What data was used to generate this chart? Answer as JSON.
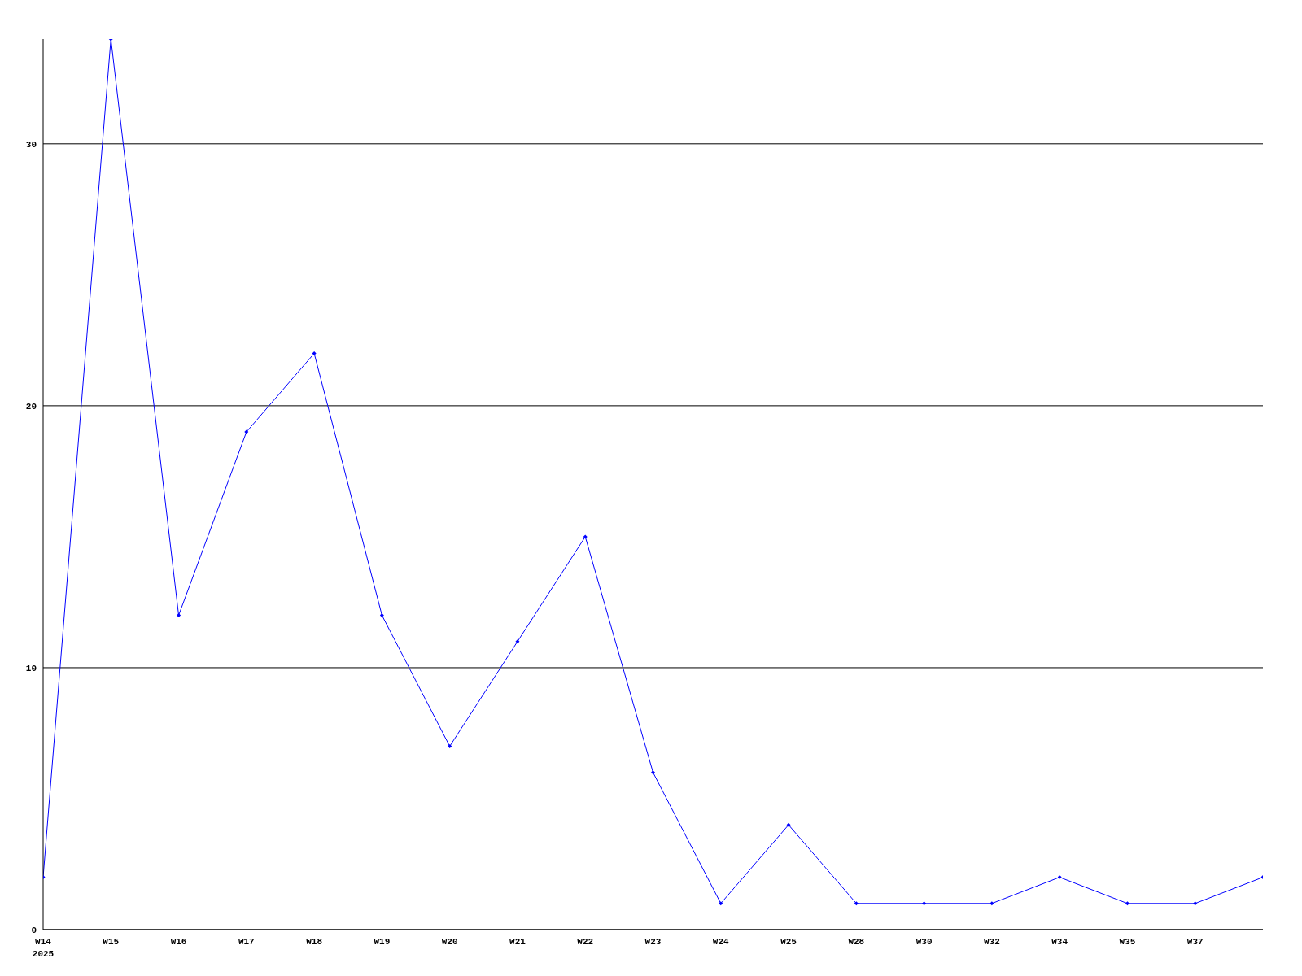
{
  "chart_data": {
    "type": "line",
    "categories": [
      "W14",
      "W15",
      "W16",
      "W17",
      "W18",
      "W19",
      "W20",
      "W21",
      "W22",
      "W23",
      "W24",
      "W25",
      "W28",
      "W30",
      "W32",
      "W34",
      "W35",
      "W37",
      null
    ],
    "series": [
      {
        "color": "#0000ff",
        "values": [
          2,
          34,
          12,
          19,
          22,
          12,
          7,
          11,
          15,
          6,
          1,
          4,
          1,
          1,
          1,
          2,
          1,
          1,
          2
        ]
      }
    ],
    "ylim": [
      0,
      34
    ],
    "yticks": [
      0,
      10,
      20,
      30
    ],
    "grid": "y",
    "marker": "diamond",
    "annotations": [
      "2025"
    ]
  }
}
